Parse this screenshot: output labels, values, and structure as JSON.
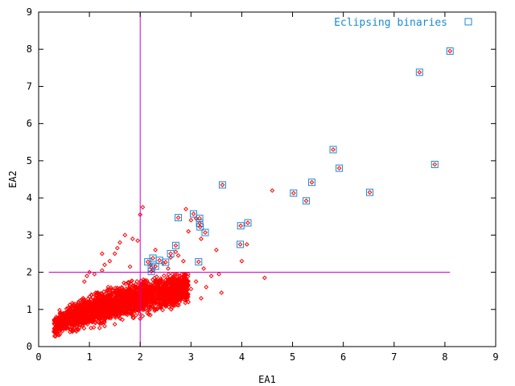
{
  "chart_data": {
    "type": "scatter",
    "xlabel": "EA1",
    "ylabel": "EA2",
    "xlim": [
      0,
      9
    ],
    "ylim": [
      0,
      9
    ],
    "xticks": [
      "0",
      "1",
      "2",
      "3",
      "4",
      "5",
      "6",
      "7",
      "8",
      "9"
    ],
    "yticks": [
      "0",
      "1",
      "2",
      "3",
      "4",
      "5",
      "6",
      "7",
      "8",
      "9"
    ],
    "grid": false,
    "legend_position": "top-right",
    "reference_lines": {
      "vertical_x": 2,
      "horizontal_y": 2,
      "horizontal_x_range": [
        0.2,
        8.1
      ],
      "color": "#cc00cc"
    },
    "series": [
      {
        "name": "",
        "color": "#ff0000",
        "marker": "diamond",
        "cluster": {
          "x_range": [
            0.3,
            2.95
          ],
          "y_range": [
            0.25,
            1.9
          ],
          "note_visible": false
        },
        "points": [
          [
            2.05,
            3.75
          ],
          [
            2.0,
            3.55
          ],
          [
            1.7,
            3.0
          ],
          [
            1.85,
            2.9
          ],
          [
            1.6,
            2.8
          ],
          [
            1.95,
            2.85
          ],
          [
            2.3,
            2.6
          ],
          [
            2.7,
            2.55
          ],
          [
            2.6,
            2.4
          ],
          [
            2.85,
            2.3
          ],
          [
            2.45,
            2.25
          ],
          [
            2.2,
            2.2
          ],
          [
            1.8,
            2.15
          ],
          [
            1.5,
            2.5
          ],
          [
            1.4,
            2.3
          ],
          [
            1.3,
            2.2
          ],
          [
            1.25,
            2.05
          ],
          [
            2.9,
            3.7
          ],
          [
            3.0,
            3.4
          ],
          [
            2.95,
            3.1
          ],
          [
            3.2,
            2.9
          ],
          [
            3.1,
            3.45
          ],
          [
            3.5,
            2.6
          ],
          [
            3.25,
            2.1
          ],
          [
            3.4,
            1.9
          ],
          [
            3.1,
            1.75
          ],
          [
            3.0,
            1.55
          ],
          [
            3.3,
            1.6
          ],
          [
            3.6,
            1.45
          ],
          [
            3.55,
            1.95
          ],
          [
            4.0,
            2.3
          ],
          [
            4.1,
            2.75
          ],
          [
            4.6,
            4.2
          ],
          [
            4.45,
            1.85
          ],
          [
            3.2,
            1.3
          ],
          [
            2.95,
            1.2
          ],
          [
            0.35,
            0.55
          ],
          [
            0.3,
            0.4
          ],
          [
            0.45,
            0.6
          ],
          [
            1.25,
            2.5
          ],
          [
            1.55,
            2.65
          ],
          [
            2.25,
            2.05
          ],
          [
            2.55,
            2.1
          ],
          [
            2.75,
            2.45
          ],
          [
            1.1,
            1.95
          ],
          [
            1.0,
            2.0
          ],
          [
            0.95,
            1.9
          ],
          [
            0.9,
            1.75
          ],
          [
            1.2,
            0.5
          ],
          [
            1.3,
            0.55
          ],
          [
            0.8,
            0.5
          ],
          [
            2.0,
            0.75
          ],
          [
            2.2,
            0.85
          ],
          [
            1.5,
            0.6
          ]
        ]
      },
      {
        "name": "Eclipsing binaries",
        "color": "#1a8ad4",
        "marker": "square",
        "points": [
          [
            8.1,
            7.95
          ],
          [
            7.5,
            7.38
          ],
          [
            5.8,
            5.3
          ],
          [
            5.92,
            4.8
          ],
          [
            7.8,
            4.9
          ],
          [
            6.52,
            4.15
          ],
          [
            5.38,
            4.42
          ],
          [
            5.02,
            4.13
          ],
          [
            5.27,
            3.92
          ],
          [
            3.62,
            4.35
          ],
          [
            4.12,
            3.33
          ],
          [
            3.98,
            3.25
          ],
          [
            3.97,
            2.75
          ],
          [
            3.05,
            3.57
          ],
          [
            3.17,
            3.45
          ],
          [
            3.17,
            3.32
          ],
          [
            3.18,
            3.22
          ],
          [
            3.28,
            3.07
          ],
          [
            2.75,
            3.47
          ],
          [
            2.7,
            2.72
          ],
          [
            2.6,
            2.5
          ],
          [
            2.5,
            2.27
          ],
          [
            2.38,
            2.32
          ],
          [
            2.25,
            2.38
          ],
          [
            2.15,
            2.28
          ],
          [
            2.22,
            2.12
          ],
          [
            2.3,
            2.16
          ],
          [
            3.15,
            2.28
          ],
          [
            2.22,
            2.02
          ]
        ]
      }
    ]
  }
}
